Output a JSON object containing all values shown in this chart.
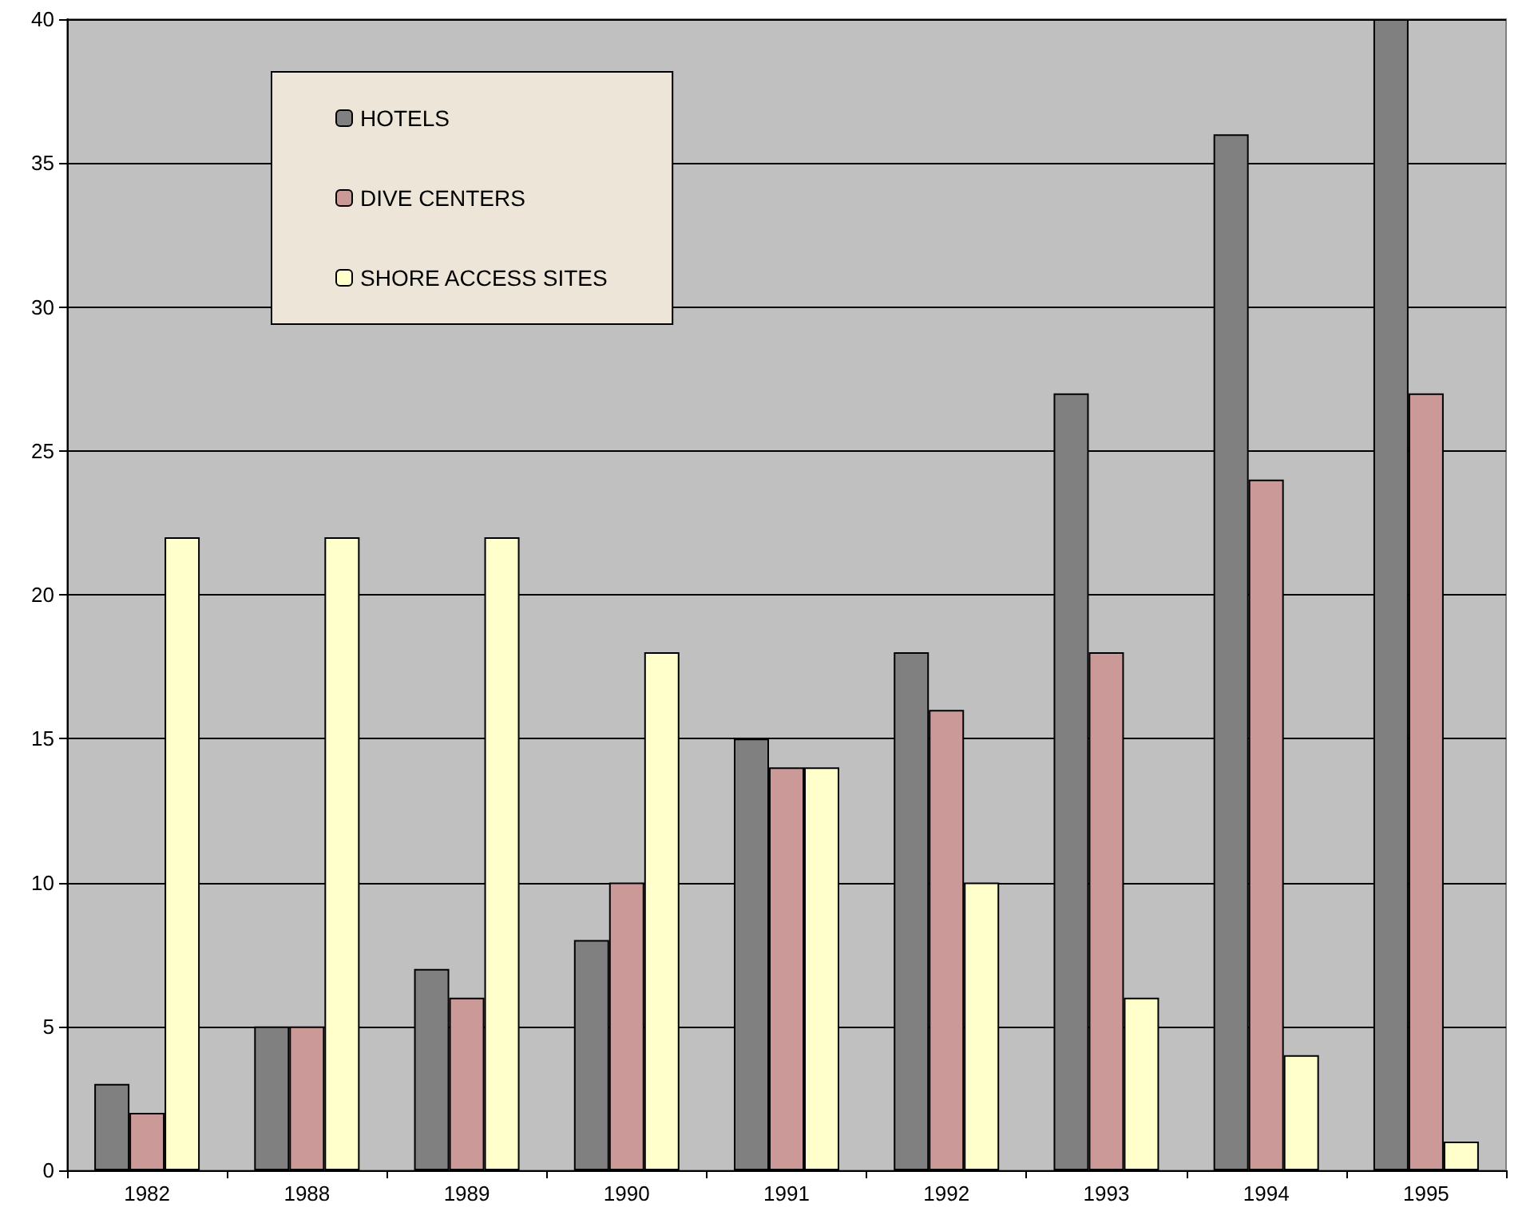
{
  "chart_data": {
    "type": "bar",
    "categories": [
      "1982",
      "1988",
      "1989",
      "1990",
      "1991",
      "1992",
      "1993",
      "1994",
      "1995"
    ],
    "series": [
      {
        "name": "HOTELS",
        "color": "#808080",
        "values": [
          3,
          5,
          7,
          8,
          15,
          18,
          27,
          36,
          40
        ]
      },
      {
        "name": "DIVE CENTERS",
        "color": "#cc9999",
        "values": [
          2,
          5,
          6,
          10,
          14,
          16,
          18,
          24,
          27
        ]
      },
      {
        "name": "SHORE ACCESS SITES",
        "color": "#ffffcc",
        "values": [
          22,
          22,
          22,
          18,
          14,
          10,
          6,
          4,
          1
        ]
      }
    ],
    "ylim": [
      0,
      40
    ],
    "yticks": [
      0,
      5,
      10,
      15,
      20,
      25,
      30,
      35,
      40
    ],
    "grid": "y",
    "legend": "top left"
  }
}
